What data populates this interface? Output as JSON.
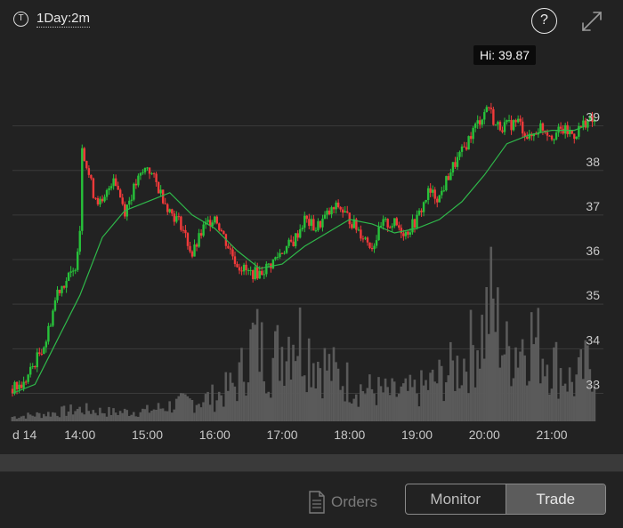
{
  "toolbar": {
    "symbol_icon": "T",
    "interval_label": "1Day:2m",
    "help_label": "?",
    "expand_icon": "expand-icon"
  },
  "chart_data": {
    "type": "candlestick",
    "hi_label": "Hi: 39.87",
    "y_axis": {
      "ticks": [
        "39",
        "38",
        "37",
        "36",
        "35",
        "34",
        "33"
      ],
      "range": [
        32.65,
        39.95
      ]
    },
    "x_axis": {
      "ticks": [
        "d 14",
        "14:00",
        "15:00",
        "16:00",
        "17:00",
        "18:00",
        "19:00",
        "20:00",
        "21:00"
      ]
    },
    "grid": true,
    "series": [
      {
        "name": "price",
        "points": [
          {
            "t": "13:00",
            "v": 33.1
          },
          {
            "t": "13:10",
            "v": 33.2
          },
          {
            "t": "13:20",
            "v": 33.7
          },
          {
            "t": "13:30",
            "v": 34.2
          },
          {
            "t": "13:40",
            "v": 35.3
          },
          {
            "t": "13:50",
            "v": 35.6
          },
          {
            "t": "13:55",
            "v": 35.7
          },
          {
            "t": "14:00",
            "v": 36.7
          },
          {
            "t": "14:02",
            "v": 38.6
          },
          {
            "t": "14:06",
            "v": 38.1
          },
          {
            "t": "14:12",
            "v": 37.5
          },
          {
            "t": "14:20",
            "v": 37.2
          },
          {
            "t": "14:30",
            "v": 37.9
          },
          {
            "t": "14:40",
            "v": 37.1
          },
          {
            "t": "14:50",
            "v": 37.7
          },
          {
            "t": "15:00",
            "v": 38.1
          },
          {
            "t": "15:10",
            "v": 37.6
          },
          {
            "t": "15:20",
            "v": 37.1
          },
          {
            "t": "15:30",
            "v": 36.8
          },
          {
            "t": "15:40",
            "v": 36.1
          },
          {
            "t": "15:50",
            "v": 36.7
          },
          {
            "t": "16:00",
            "v": 37.0
          },
          {
            "t": "16:10",
            "v": 36.4
          },
          {
            "t": "16:20",
            "v": 35.9
          },
          {
            "t": "16:30",
            "v": 35.7
          },
          {
            "t": "16:40",
            "v": 35.7
          },
          {
            "t": "16:50",
            "v": 35.9
          },
          {
            "t": "17:00",
            "v": 36.2
          },
          {
            "t": "17:10",
            "v": 36.4
          },
          {
            "t": "17:20",
            "v": 36.9
          },
          {
            "t": "17:30",
            "v": 36.7
          },
          {
            "t": "17:40",
            "v": 37.0
          },
          {
            "t": "17:50",
            "v": 37.2
          },
          {
            "t": "18:00",
            "v": 36.9
          },
          {
            "t": "18:10",
            "v": 36.6
          },
          {
            "t": "18:20",
            "v": 36.3
          },
          {
            "t": "18:30",
            "v": 36.8
          },
          {
            "t": "18:40",
            "v": 36.8
          },
          {
            "t": "18:50",
            "v": 36.6
          },
          {
            "t": "19:00",
            "v": 36.9
          },
          {
            "t": "19:10",
            "v": 37.5
          },
          {
            "t": "19:20",
            "v": 37.4
          },
          {
            "t": "19:30",
            "v": 38.0
          },
          {
            "t": "19:40",
            "v": 38.4
          },
          {
            "t": "19:50",
            "v": 38.9
          },
          {
            "t": "20:00",
            "v": 39.3
          },
          {
            "t": "20:03",
            "v": 39.5
          },
          {
            "t": "20:10",
            "v": 39.0
          },
          {
            "t": "20:20",
            "v": 39.0
          },
          {
            "t": "20:30",
            "v": 39.1
          },
          {
            "t": "20:40",
            "v": 38.7
          },
          {
            "t": "20:50",
            "v": 39.0
          },
          {
            "t": "21:00",
            "v": 38.8
          },
          {
            "t": "21:10",
            "v": 38.9
          },
          {
            "t": "21:20",
            "v": 38.8
          },
          {
            "t": "21:30",
            "v": 39.1
          }
        ]
      },
      {
        "name": "moving-average",
        "points": [
          {
            "t": "13:00",
            "v": 33.0
          },
          {
            "t": "13:20",
            "v": 33.2
          },
          {
            "t": "13:40",
            "v": 34.2
          },
          {
            "t": "14:00",
            "v": 35.2
          },
          {
            "t": "14:20",
            "v": 36.5
          },
          {
            "t": "14:40",
            "v": 37.1
          },
          {
            "t": "15:00",
            "v": 37.3
          },
          {
            "t": "15:20",
            "v": 37.5
          },
          {
            "t": "15:40",
            "v": 37.0
          },
          {
            "t": "16:00",
            "v": 36.7
          },
          {
            "t": "16:20",
            "v": 36.2
          },
          {
            "t": "16:40",
            "v": 35.8
          },
          {
            "t": "17:00",
            "v": 35.9
          },
          {
            "t": "17:20",
            "v": 36.3
          },
          {
            "t": "17:40",
            "v": 36.6
          },
          {
            "t": "18:00",
            "v": 36.9
          },
          {
            "t": "18:20",
            "v": 36.8
          },
          {
            "t": "18:40",
            "v": 36.6
          },
          {
            "t": "19:00",
            "v": 36.7
          },
          {
            "t": "19:20",
            "v": 36.9
          },
          {
            "t": "19:40",
            "v": 37.3
          },
          {
            "t": "20:00",
            "v": 37.9
          },
          {
            "t": "20:20",
            "v": 38.6
          },
          {
            "t": "20:40",
            "v": 38.8
          },
          {
            "t": "21:00",
            "v": 38.9
          },
          {
            "t": "21:20",
            "v": 38.9
          },
          {
            "t": "21:30",
            "v": 39.0
          }
        ]
      }
    ],
    "volume_profile": [
      {
        "t": "13:00",
        "v": 0.03
      },
      {
        "t": "13:30",
        "v": 0.05
      },
      {
        "t": "14:00",
        "v": 0.08
      },
      {
        "t": "14:30",
        "v": 0.06
      },
      {
        "t": "15:00",
        "v": 0.07
      },
      {
        "t": "15:30",
        "v": 0.12
      },
      {
        "t": "16:00",
        "v": 0.16
      },
      {
        "t": "16:20",
        "v": 0.25
      },
      {
        "t": "16:35",
        "v": 0.55
      },
      {
        "t": "16:50",
        "v": 0.38
      },
      {
        "t": "17:10",
        "v": 0.62
      },
      {
        "t": "17:30",
        "v": 0.42
      },
      {
        "t": "17:50",
        "v": 0.3
      },
      {
        "t": "18:10",
        "v": 0.22
      },
      {
        "t": "18:40",
        "v": 0.18
      },
      {
        "t": "19:00",
        "v": 0.2
      },
      {
        "t": "19:20",
        "v": 0.28
      },
      {
        "t": "19:40",
        "v": 0.38
      },
      {
        "t": "20:00",
        "v": 0.62
      },
      {
        "t": "20:05",
        "v": 0.8
      },
      {
        "t": "20:20",
        "v": 0.45
      },
      {
        "t": "20:40",
        "v": 0.58
      },
      {
        "t": "21:00",
        "v": 0.4
      },
      {
        "t": "21:20",
        "v": 0.25
      },
      {
        "t": "21:35",
        "v": 0.4
      }
    ],
    "colors": {
      "up": "#27c23a",
      "down": "#f23a3a",
      "ma": "#2fb84a",
      "volume": "#5a5a5a",
      "grid": "#3b3b3b",
      "axis_text": "#c8c8c8"
    }
  },
  "bottom": {
    "orders_label": "Orders",
    "orders_icon": "document-icon",
    "monitor_label": "Monitor",
    "trade_label": "Trade"
  }
}
